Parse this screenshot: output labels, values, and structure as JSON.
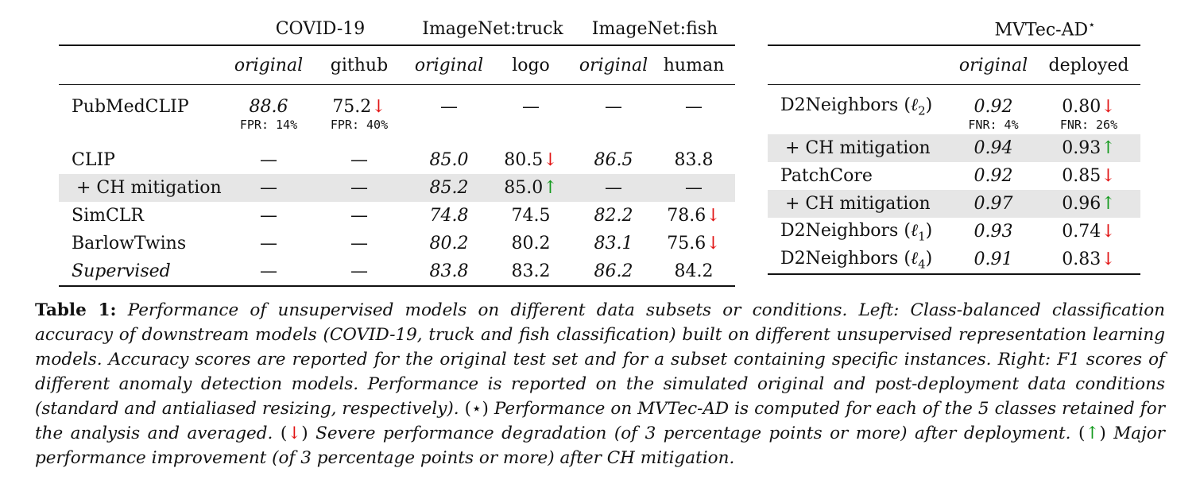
{
  "left_table": {
    "groups": [
      "COVID-19",
      "ImageNet:truck",
      "ImageNet:fish"
    ],
    "subheaders": [
      "original",
      "github",
      "original",
      "logo",
      "original",
      "human"
    ],
    "rows": [
      {
        "name": "PubMedCLIP",
        "cells": [
          "88.6",
          "75.2",
          "—",
          "—",
          "—",
          "—"
        ],
        "notes": [
          "FPR: 14%",
          "FPR: 40%"
        ]
      },
      {
        "name": "CLIP",
        "cells": [
          "—",
          "—",
          "85.0",
          "80.5",
          "86.5",
          "83.8"
        ]
      },
      {
        "name": "+ CH mitigation",
        "cells": [
          "—",
          "—",
          "85.2",
          "85.0",
          "—",
          "—"
        ]
      },
      {
        "name": "SimCLR",
        "cells": [
          "—",
          "—",
          "74.8",
          "74.5",
          "82.2",
          "78.6"
        ]
      },
      {
        "name": "BarlowTwins",
        "cells": [
          "—",
          "—",
          "80.2",
          "80.2",
          "83.1",
          "75.6"
        ]
      },
      {
        "name": "Supervised",
        "cells": [
          "—",
          "—",
          "83.8",
          "83.2",
          "86.2",
          "84.2"
        ]
      }
    ]
  },
  "right_table": {
    "title": "MVTec-AD",
    "title_mark": "⋆",
    "subheaders": [
      "original",
      "deployed"
    ],
    "rows": [
      {
        "name": "D2Neighbors (",
        "name_var": "ℓ",
        "name_sub": "2",
        "name_end": ")",
        "cells": [
          "0.92",
          "0.80"
        ],
        "notes": [
          "FNR: 4%",
          "FNR: 26%"
        ]
      },
      {
        "name": "+ CH mitigation",
        "cells": [
          "0.94",
          "0.93"
        ]
      },
      {
        "name": "PatchCore",
        "cells": [
          "0.92",
          "0.85"
        ]
      },
      {
        "name": "+ CH mitigation",
        "cells": [
          "0.97",
          "0.96"
        ]
      },
      {
        "name": "D2Neighbors (",
        "name_var": "ℓ",
        "name_sub": "1",
        "name_end": ")",
        "cells": [
          "0.93",
          "0.74"
        ]
      },
      {
        "name": "D2Neighbors (",
        "name_var": "ℓ",
        "name_sub": "4",
        "name_end": ")",
        "cells": [
          "0.91",
          "0.83"
        ]
      }
    ]
  },
  "arrows": {
    "down": "↓",
    "up": "↑"
  },
  "colors": {
    "down_arrow": "#e11414",
    "up_arrow": "#149a1e",
    "highlight_row": "#e6e6e6"
  },
  "caption": {
    "label": "Table 1:",
    "p1": "Performance of unsupervised models on different data subsets or conditions. Left: Class-balanced classification accuracy of downstream models (COVID-19, truck and fish classification) built on different unsupervised representation learning models. Accuracy scores are reported for the original test set and for a subset containing specific instances. Right: F1 scores of different anomaly detection models. Performance is reported on the simulated original and post-deployment data conditions (standard and antialiased resizing, respectively).",
    "star_open": "(",
    "star_mark": "⋆",
    "star_close": ")",
    "p2": "Performance on MVTec-AD is computed for each of the 5 classes retained for the analysis and averaged.",
    "down_open": "(",
    "down_close": ")",
    "p3": "Severe performance degradation (of 3 percentage points or more) after deployment.",
    "up_open": "(",
    "up_close": ")",
    "p4": "Major performance improvement (of 3 percentage points or more) after CH mitigation."
  }
}
